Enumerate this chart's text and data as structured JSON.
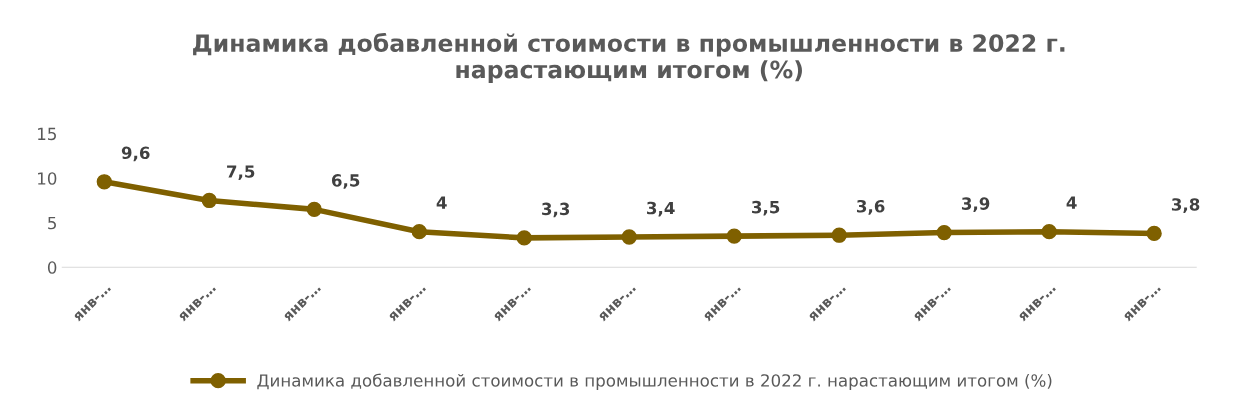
{
  "chart_data": {
    "type": "line",
    "title": "Динамика добавленной стоимости в промышленности в 2022 г.\nнарастающим итогом (%)",
    "categories": [
      "янв-…",
      "янв-…",
      "янв-…",
      "янв-…",
      "янв-…",
      "янв-…",
      "янв-…",
      "янв-…",
      "янв-…",
      "янв-…",
      "янв-…"
    ],
    "series": [
      {
        "name": "Динамика добавленной стоимости в промышленности в 2022 г. нарастающим итогом (%)",
        "color": "#7f6000",
        "values": [
          9.6,
          7.5,
          6.5,
          4,
          3.3,
          3.4,
          3.5,
          3.6,
          3.9,
          4,
          3.8
        ],
        "value_labels": [
          "9,6",
          "7,5",
          "6,5",
          "4",
          "3,3",
          "3,4",
          "3,5",
          "3,6",
          "3,9",
          "4",
          "3,8"
        ]
      }
    ],
    "ylim": [
      0,
      15
    ],
    "yticks": [
      0,
      5,
      10,
      15
    ],
    "grid": false,
    "legend": "bottom",
    "marker": "circle",
    "line_style": "solid"
  }
}
